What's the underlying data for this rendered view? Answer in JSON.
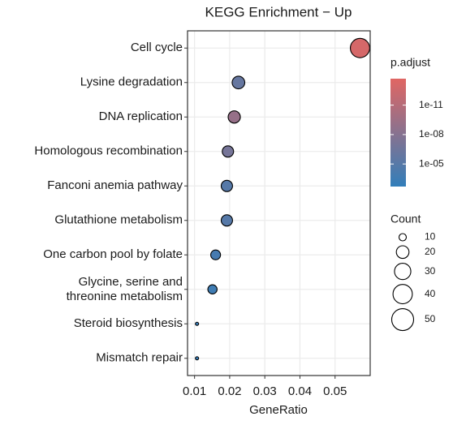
{
  "chart_data": {
    "type": "dot",
    "title": "KEGG Enrichment − Up",
    "x_label": "GeneRatio",
    "categories": [
      "Cell cycle",
      "Lysine degradation",
      "DNA replication",
      "Homologous recombination",
      "Fanconi anemia pathway",
      "Glutathione metabolism",
      "One carbon pool by folate",
      "Glycine, serine and\nthreonine metabolism",
      "Steroid biosynthesis",
      "Mismatch repair"
    ],
    "values": [
      0.0571,
      0.0225,
      0.0213,
      0.0195,
      0.0192,
      0.0192,
      0.016,
      0.0151,
      0.0107,
      0.0107
    ],
    "count": [
      40,
      20,
      19,
      17,
      17,
      17,
      14,
      13,
      6,
      6
    ],
    "p_adjust": [
      1e-13,
      1e-06,
      1e-09,
      1e-07,
      1e-05,
      1e-05,
      0.0001,
      0.0003,
      0.001,
      0.001
    ],
    "xlim": [
      0.008,
      0.06
    ],
    "xticks": [
      0.01,
      0.02,
      0.03,
      0.04,
      0.05
    ],
    "grid": true,
    "color_title": "p.adjust",
    "color_log": true,
    "color_low": "#e06663",
    "color_high": "#327eba",
    "clim": [
      2e-14,
      0.002
    ],
    "cticks": [
      {
        "value": 1e-11,
        "label": "1e-11"
      },
      {
        "value": 1e-08,
        "label": "1e-08"
      },
      {
        "value": 1e-05,
        "label": "1e-05"
      }
    ],
    "size_title": "Count",
    "size_legend": [
      10,
      20,
      30,
      40,
      50
    ]
  }
}
